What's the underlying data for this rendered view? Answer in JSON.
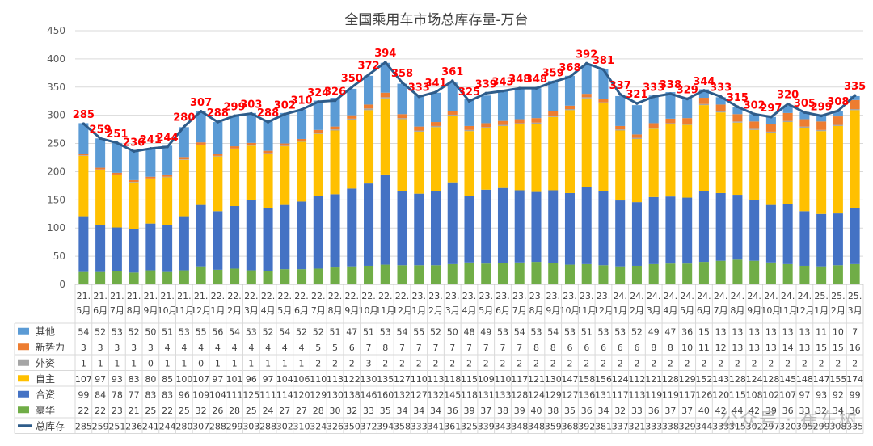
{
  "watermark": "公众号 · 崔东树",
  "chart_data": {
    "type": "bar",
    "stacked": true,
    "title": "全国乘用车市场总库存量-万台",
    "ylim": [
      0,
      450
    ],
    "yticks": [
      0,
      50,
      100,
      150,
      200,
      250,
      300,
      350,
      400,
      450
    ],
    "grid": true,
    "categories": [
      "21.5月",
      "21.6月",
      "21.7月",
      "21.8月",
      "21.9月",
      "21.10月",
      "21.11月",
      "21.12月",
      "22.1月",
      "22.2月",
      "22.3月",
      "22.4月",
      "22.5月",
      "22.6月",
      "22.7月",
      "22.8月",
      "22.9月",
      "22.10月",
      "22.11月",
      "22.12月",
      "23.1月",
      "23.2月",
      "23.3月",
      "23.4月",
      "23.5月",
      "23.6月",
      "23.7月",
      "23.8月",
      "23.9月",
      "23.10月",
      "23.11月",
      "23.12月",
      "24.1月",
      "24.2月",
      "24.3月",
      "24.4月",
      "24.5月",
      "24.6月",
      "24.7月",
      "24.8月",
      "24.9月",
      "24.10月",
      "24.11月",
      "24.12月",
      "25.1月",
      "25.2月",
      "25.3月"
    ],
    "series": [
      {
        "name": "其他",
        "color": "#5B9BD5",
        "values": [
          54,
          52,
          53,
          52,
          50,
          51,
          53,
          55,
          56,
          54,
          53,
          52,
          54,
          52,
          52,
          51,
          47,
          51,
          53,
          54,
          55,
          52,
          50,
          48,
          49,
          53,
          54,
          53,
          54,
          53,
          51,
          53,
          53,
          52,
          49,
          47,
          36,
          15,
          13,
          13,
          13,
          13,
          13,
          13,
          11,
          10,
          7
        ]
      },
      {
        "name": "新势力",
        "color": "#ED7D31",
        "values": [
          3,
          3,
          3,
          3,
          3,
          4,
          4,
          4,
          4,
          4,
          4,
          4,
          4,
          4,
          5,
          5,
          6,
          7,
          8,
          7,
          7,
          7,
          7,
          7,
          7,
          7,
          7,
          8,
          8,
          6,
          6,
          6,
          6,
          6,
          8,
          8,
          10,
          11,
          12,
          13,
          13,
          13,
          14,
          13,
          15,
          15,
          16
        ]
      },
      {
        "name": "外资",
        "color": "#A5A5A5",
        "values": [
          1,
          1,
          1,
          1,
          0,
          1,
          1,
          0,
          1,
          1,
          1,
          1,
          1,
          1,
          2,
          2,
          2,
          3,
          2,
          2,
          2,
          2,
          2,
          2,
          2,
          2,
          2,
          2,
          2,
          2,
          2,
          2,
          2,
          2,
          2,
          2,
          2,
          2,
          2,
          2,
          2,
          2,
          2,
          2,
          2,
          2,
          2
        ]
      },
      {
        "name": "自主",
        "color": "#FFC000",
        "values": [
          107,
          97,
          93,
          83,
          80,
          85,
          100,
          107,
          97,
          101,
          96,
          97,
          104,
          106,
          110,
          113,
          122,
          130,
          135,
          127,
          110,
          113,
          118,
          115,
          109,
          110,
          117,
          121,
          130,
          147,
          158,
          156,
          124,
          112,
          121,
          128,
          129,
          152,
          143,
          128,
          124,
          128,
          145,
          148,
          147,
          155,
          174
        ]
      },
      {
        "name": "合资",
        "color": "#4472C4",
        "values": [
          99,
          84,
          78,
          77,
          83,
          83,
          96,
          109,
          104,
          111,
          125,
          111,
          114,
          120,
          129,
          130,
          138,
          146,
          160,
          132,
          127,
          132,
          145,
          118,
          131,
          133,
          128,
          124,
          129,
          127,
          136,
          131,
          117,
          113,
          119,
          119,
          117,
          126,
          120,
          115,
          108,
          102,
          107,
          97,
          93,
          92,
          99
        ]
      },
      {
        "name": "豪华",
        "color": "#70AD47",
        "values": [
          22,
          22,
          23,
          21,
          25,
          22,
          25,
          32,
          26,
          28,
          25,
          24,
          27,
          27,
          28,
          30,
          32,
          33,
          35,
          34,
          34,
          34,
          36,
          39,
          37,
          38,
          39,
          40,
          38,
          35,
          36,
          34,
          32,
          33,
          36,
          37,
          37,
          40,
          42,
          44,
          42,
          39,
          36,
          33,
          32,
          34,
          36
        ]
      },
      {
        "name": "总库存",
        "type": "line",
        "color": "#2E5C8A",
        "values": [
          285,
          259,
          251,
          236,
          241,
          244,
          280,
          307,
          288,
          299,
          303,
          288,
          302,
          310,
          324,
          326,
          350,
          372,
          394,
          358,
          333,
          341,
          361,
          325,
          339,
          343,
          348,
          348,
          359,
          368,
          392,
          381,
          337,
          321,
          333,
          338,
          329,
          344,
          333,
          315,
          302,
          297,
          320,
          305,
          299,
          308,
          335
        ]
      }
    ]
  }
}
